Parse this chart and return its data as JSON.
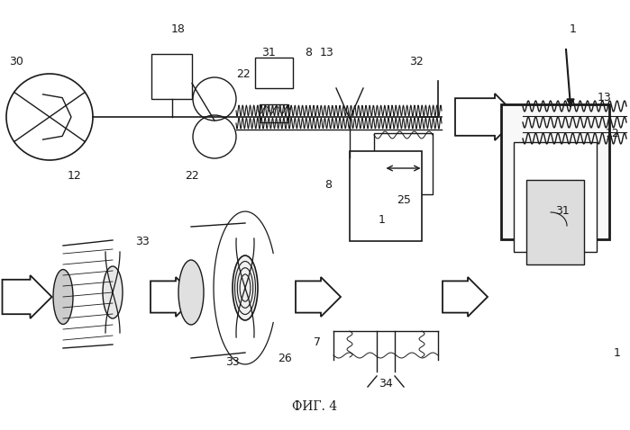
{
  "bg_color": "#ffffff",
  "line_color": "#1a1a1a",
  "title": "ФИГ. 4",
  "title_fontsize": 10,
  "figsize": [
    6.99,
    4.78
  ],
  "dpi": 100
}
